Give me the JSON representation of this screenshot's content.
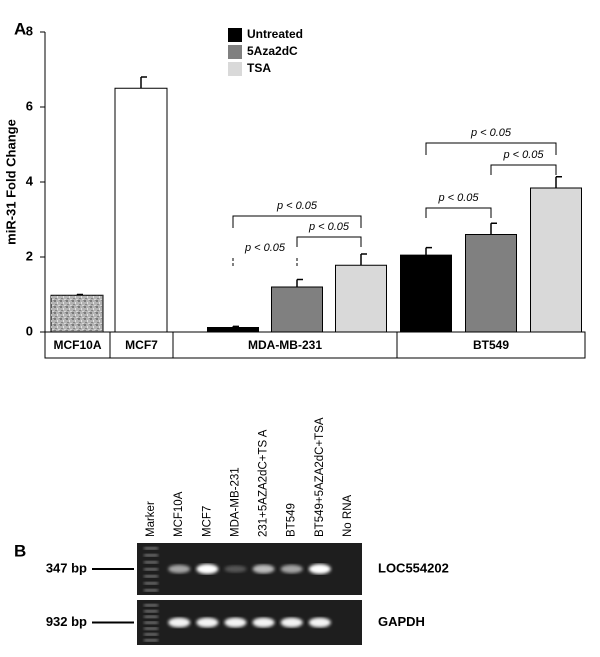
{
  "chart_data": {
    "type": "bar",
    "panel_label": "A",
    "ylabel": "miR-31 Fold Change",
    "ylim": [
      0,
      8
    ],
    "yticks": [
      0,
      2,
      4,
      6,
      8
    ],
    "categories": [
      "MCF10A",
      "MCF7",
      "MDA-MB-231",
      "BT549"
    ],
    "single": {
      "values": [
        0.98,
        6.5,
        null,
        null
      ],
      "errors": [
        0.02,
        0.3,
        null,
        null
      ],
      "colors": [
        "#b4b4b4",
        "#ffffff",
        null,
        null
      ]
    },
    "series": [
      {
        "name": "Untreated",
        "color": "#000000",
        "values": [
          null,
          null,
          0.12,
          2.05
        ],
        "errors": [
          null,
          null,
          0.03,
          0.2
        ]
      },
      {
        "name": "5Aza2dC",
        "color": "#808080",
        "values": [
          null,
          null,
          1.2,
          2.6
        ],
        "errors": [
          null,
          null,
          0.2,
          0.3
        ]
      },
      {
        "name": "TSA",
        "color": "#d9d9d9",
        "values": [
          null,
          null,
          1.78,
          3.84
        ],
        "errors": [
          null,
          null,
          0.3,
          0.3
        ]
      }
    ],
    "annotations": [
      "p < 0.05",
      "p < 0.05",
      "p < 0.05",
      "p < 0.05",
      "p < 0.05",
      "p < 0.05"
    ]
  },
  "gel": {
    "panel_label": "B",
    "lanes": [
      "Marker",
      "MCF10A",
      "MCF7",
      "MDA-MB-231",
      "231+5AZA2dC+TS A",
      "BT549",
      "BT549+5AZA2dC+TSA",
      "No RNA"
    ],
    "bands": [
      {
        "size": "347 bp",
        "gene": "LOC554202"
      },
      {
        "size": "932 bp",
        "gene": "GAPDH"
      }
    ]
  }
}
